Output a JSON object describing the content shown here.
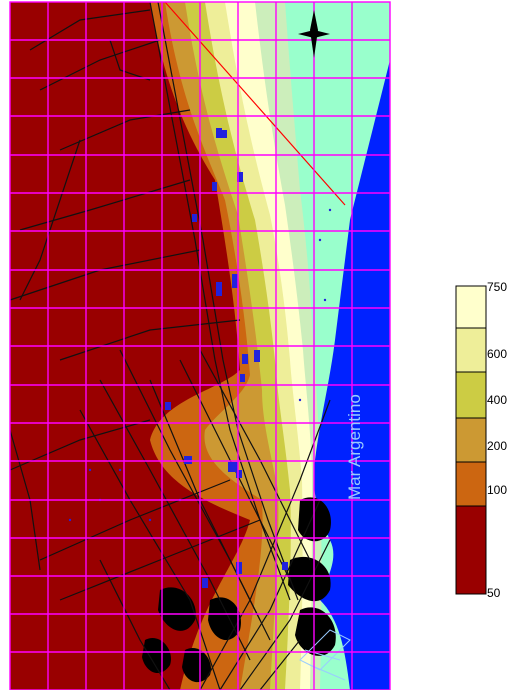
{
  "map": {
    "sea_label": "Mar Argentino",
    "north_arrow_icon": "north-arrow-icon",
    "colors": {
      "band_50_100": "#990000",
      "band_100_200": "#cc6611",
      "band_200_400": "#cc9933",
      "band_400_600": "#cccc44",
      "band_600_750": "#eeee99",
      "band_750_plus": "#ffffcc",
      "band_coast_1": "#cceebb",
      "band_coast_2": "#99ffcc",
      "sea": "#0022ff",
      "grid": "#ff00ff",
      "roads": "#111111",
      "buildings": "#000000",
      "wells": "#2222dd",
      "diagonal_line": "#ff0000"
    }
  },
  "legend": {
    "colors": [
      "#ffffcc",
      "#eeee99",
      "#cccc44",
      "#cc9933",
      "#cc6611",
      "#990000"
    ],
    "labels": [
      "750",
      "600",
      "400",
      "200",
      "100",
      "50"
    ]
  }
}
